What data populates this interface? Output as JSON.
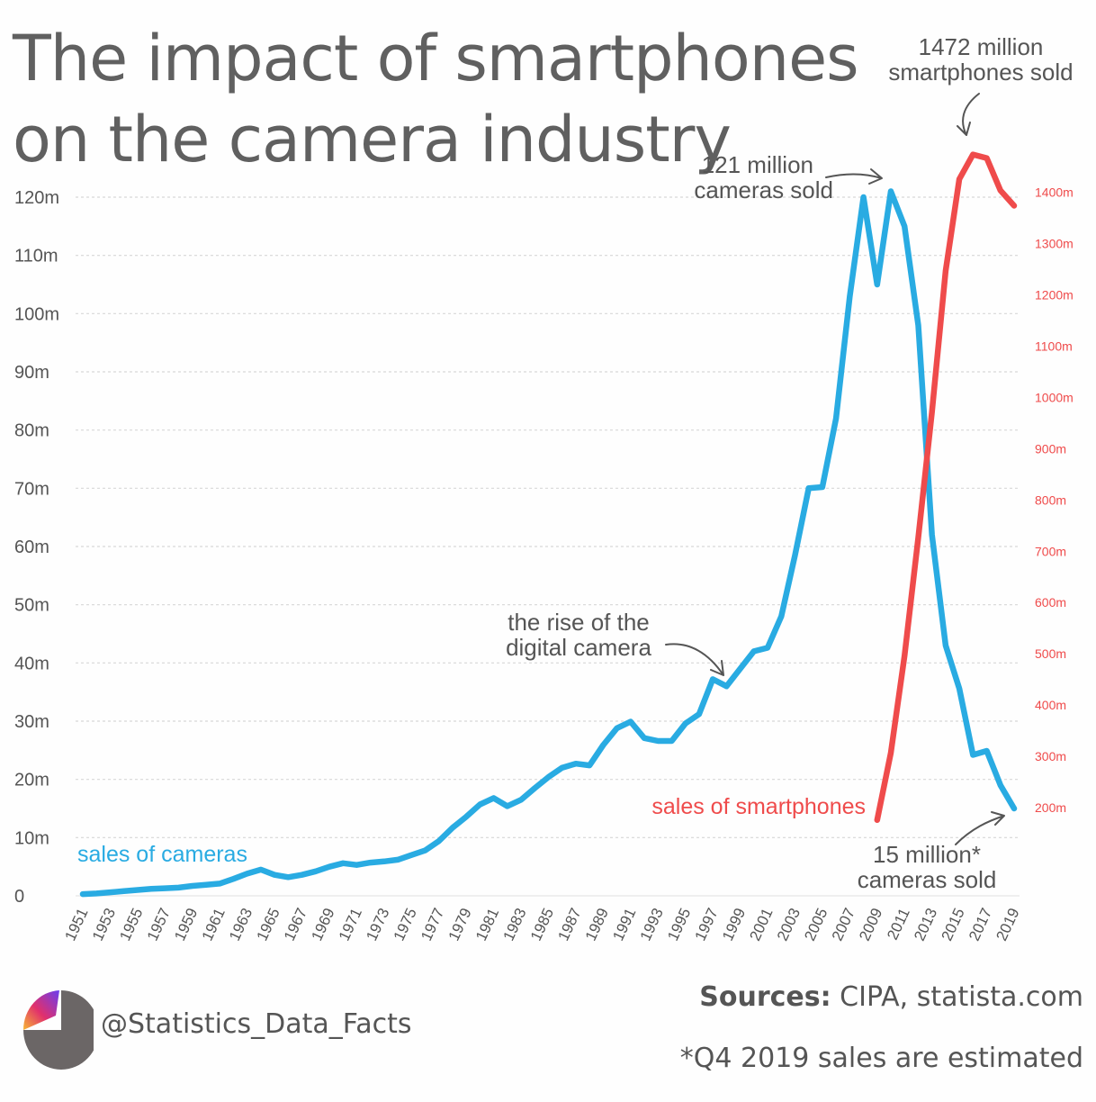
{
  "title_line1": "The impact of smartphones",
  "title_line2": "on the camera industry",
  "handle": "@Statistics_Data_Facts",
  "sources_label": "Sources:",
  "sources_text": " CIPA, statista.com",
  "footnote": "*Q4 2019 sales are estimated",
  "colors": {
    "cameras": "#29abe2",
    "smartphones": "#ef4b4b",
    "text": "#555555",
    "grid": "#d8d8d8"
  },
  "annotations": {
    "smartphones_peak": [
      "1472 million",
      "smartphones sold"
    ],
    "cameras_peak": [
      "121 million",
      "cameras sold"
    ],
    "digital_camera": [
      "the rise of the",
      "digital camera"
    ],
    "cameras_2019": [
      "15 million*",
      "cameras sold"
    ]
  },
  "chart_data": {
    "type": "line",
    "x_tick_labels": [
      "1951",
      "1953",
      "1955",
      "1957",
      "1959",
      "1961",
      "1963",
      "1965",
      "1967",
      "1969",
      "1971",
      "1973",
      "1975",
      "1977",
      "1979",
      "1981",
      "1983",
      "1985",
      "1987",
      "1989",
      "1991",
      "1993",
      "1995",
      "1997",
      "1999",
      "2001",
      "2003",
      "2005",
      "2007",
      "2009",
      "2011",
      "2013",
      "2015",
      "2017",
      "2019"
    ],
    "y_left": {
      "ticks": [
        0,
        10,
        20,
        30,
        40,
        50,
        60,
        70,
        80,
        90,
        100,
        110,
        120
      ],
      "tick_labels": [
        "0",
        "10m",
        "20m",
        "30m",
        "40m",
        "50m",
        "60m",
        "70m",
        "80m",
        "90m",
        "100m",
        "110m",
        "120m"
      ],
      "ylim": [
        0,
        120
      ]
    },
    "y_right": {
      "ticks": [
        200,
        300,
        400,
        500,
        600,
        700,
        800,
        900,
        1000,
        1100,
        1200,
        1300,
        1400
      ],
      "tick_labels": [
        "200m",
        "300m",
        "400m",
        "500m",
        "600m",
        "700m",
        "800m",
        "900m",
        "1000m",
        "1100m",
        "1200m",
        "1300m",
        "1400m"
      ]
    },
    "grid": true,
    "series": [
      {
        "name": "sales of cameras",
        "axis": "left",
        "x": [
          1951,
          1952,
          1953,
          1954,
          1955,
          1956,
          1957,
          1958,
          1959,
          1960,
          1961,
          1962,
          1963,
          1964,
          1965,
          1966,
          1967,
          1968,
          1969,
          1970,
          1971,
          1972,
          1973,
          1974,
          1975,
          1976,
          1977,
          1978,
          1979,
          1980,
          1981,
          1982,
          1983,
          1984,
          1985,
          1986,
          1987,
          1988,
          1989,
          1990,
          1991,
          1992,
          1993,
          1994,
          1995,
          1996,
          1997,
          1998,
          1999,
          2000,
          2001,
          2002,
          2003,
          2004,
          2005,
          2006,
          2007,
          2008,
          2009,
          2010,
          2011,
          2012,
          2013,
          2014,
          2015,
          2016,
          2017,
          2018,
          2019
        ],
        "values": [
          0.3,
          0.4,
          0.6,
          0.8,
          1.0,
          1.2,
          1.3,
          1.4,
          1.7,
          1.9,
          2.1,
          2.9,
          3.8,
          4.5,
          3.6,
          3.2,
          3.6,
          4.2,
          5.0,
          5.6,
          5.3,
          5.7,
          5.9,
          6.2,
          7.0,
          7.8,
          9.4,
          11.7,
          13.6,
          15.7,
          16.8,
          15.4,
          16.5,
          18.5,
          20.4,
          22.0,
          22.7,
          22.4,
          25.9,
          28.8,
          29.9,
          27.1,
          26.6,
          26.6,
          29.6,
          31.2,
          37.2,
          36.0,
          39.0,
          42.0,
          42.6,
          48.0,
          58.5,
          70.0,
          70.2,
          82.0,
          103.0,
          120.0,
          105.0,
          121.0,
          115.0,
          98.0,
          62.0,
          43.0,
          35.6,
          24.2,
          24.9,
          19.0,
          15.0
        ]
      },
      {
        "name": "sales of smartphones",
        "axis": "right",
        "x": [
          2009,
          2010,
          2011,
          2012,
          2013,
          2014,
          2015,
          2016,
          2017,
          2018,
          2019
        ],
        "values": [
          174,
          305,
          494,
          725,
          970,
          1245,
          1424,
          1472,
          1465,
          1402,
          1372
        ]
      }
    ]
  }
}
